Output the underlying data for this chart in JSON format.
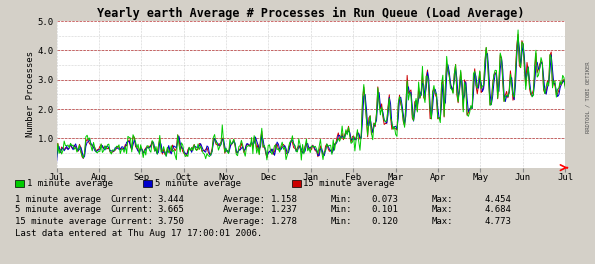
{
  "title": "Yearly earth Average # Processes in Run Queue (Load Average)",
  "ylabel": "Number Processes",
  "ylim": [
    0,
    5.0
  ],
  "yticks": [
    0.0,
    1.0,
    2.0,
    3.0,
    4.0,
    5.0
  ],
  "ytick_labels": [
    "",
    "1.0",
    "2.0",
    "3.0",
    "4.0",
    "5.0"
  ],
  "x_labels": [
    "Jul",
    "Aug",
    "Sep",
    "Oct",
    "Nov",
    "Dec",
    "Jan",
    "Feb",
    "Mar",
    "Apr",
    "May",
    "Jun",
    "Jul"
  ],
  "bg_color": "#d4d0c8",
  "plot_bg_color": "#ffffff",
  "grid_color_major": "#aa0000",
  "grid_color_minor": "#aaaaaa",
  "line_color_1min": "#00cc00",
  "line_color_5min": "#0000cc",
  "line_color_15min": "#cc0000",
  "legend": [
    "1 minute average",
    "5 minute average",
    "15 minute average"
  ],
  "stats": [
    {
      "label": "1 minute average",
      "current": "3.444",
      "average": "1.158",
      "min": "0.073",
      "max": "4.454"
    },
    {
      "label": "5 minute average",
      "current": "3.665",
      "average": "1.237",
      "min": "0.101",
      "max": "4.684"
    },
    {
      "label": "15 minute average",
      "current": "3.750",
      "average": "1.278",
      "min": "0.120",
      "max": "4.773"
    }
  ],
  "footer": "Last data entered at Thu Aug 17 17:00:01 2006.",
  "n_points": 400,
  "rrdtool_label": "RRDTOOL / TOBI OETIKER"
}
